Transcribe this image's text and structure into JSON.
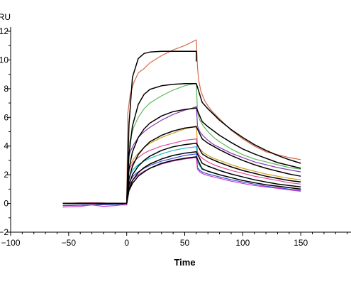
{
  "chart_data": {
    "type": "line",
    "title": "",
    "xlabel": "Time",
    "ylabel": "RU",
    "xlim": [
      -100,
      195
    ],
    "ylim": [
      -2,
      12.5
    ],
    "xticks": [
      -100,
      -50,
      0,
      50,
      100,
      150
    ],
    "yticks": [
      -2,
      0,
      2,
      4,
      6,
      8,
      10,
      12
    ],
    "grid": false,
    "legend": "none",
    "association_end": 60,
    "series": [
      {
        "color": "#d5694a",
        "kind": "data",
        "x": [
          -55,
          -40,
          -20,
          -5,
          0,
          1,
          3,
          6,
          10,
          15,
          20,
          30,
          40,
          50,
          55,
          60,
          61,
          62,
          64,
          67,
          70,
          75,
          80,
          90,
          100,
          110,
          120,
          130,
          140,
          150
        ],
        "y": [
          0,
          0.05,
          -0.05,
          0,
          0,
          6.3,
          7.6,
          8.4,
          9.1,
          9.4,
          9.8,
          10.3,
          10.7,
          11.0,
          11.2,
          11.4,
          9.5,
          8.6,
          7.8,
          7.2,
          6.8,
          6.3,
          5.9,
          5.1,
          4.5,
          4.0,
          3.6,
          3.4,
          3.2,
          3.05
        ]
      },
      {
        "color": "#5cb85c",
        "kind": "data",
        "x": [
          -55,
          -30,
          -5,
          0,
          1,
          3,
          6,
          10,
          15,
          20,
          30,
          40,
          50,
          55,
          60,
          61,
          63,
          66,
          70,
          75,
          80,
          90,
          100,
          110,
          120,
          130,
          140,
          150
        ],
        "y": [
          0,
          0.05,
          0,
          0,
          3.5,
          4.5,
          5.3,
          6.0,
          6.6,
          7.0,
          7.5,
          7.9,
          8.2,
          8.3,
          8.35,
          6.3,
          5.8,
          5.4,
          5.0,
          4.6,
          4.3,
          3.8,
          3.4,
          3.1,
          2.9,
          2.7,
          2.5,
          2.4
        ]
      },
      {
        "color": "#8a3bb0",
        "kind": "data",
        "x": [
          -55,
          -30,
          -5,
          0,
          1,
          3,
          6,
          10,
          15,
          20,
          30,
          40,
          50,
          55,
          60,
          61,
          63,
          66,
          70,
          75,
          80,
          90,
          100,
          110,
          120,
          130,
          140,
          150
        ],
        "y": [
          0,
          0.05,
          0,
          0,
          3.0,
          3.6,
          4.1,
          4.6,
          5.0,
          5.3,
          5.8,
          6.2,
          6.5,
          6.6,
          6.75,
          5.4,
          5.0,
          4.7,
          4.4,
          4.1,
          3.9,
          3.5,
          3.2,
          2.9,
          2.7,
          2.5,
          2.35,
          2.2
        ]
      },
      {
        "color": "#c9a21a",
        "kind": "data",
        "x": [
          -55,
          -30,
          -5,
          0,
          1,
          3,
          6,
          10,
          15,
          20,
          30,
          40,
          50,
          55,
          60,
          61,
          63,
          66,
          70,
          75,
          80,
          90,
          100,
          110,
          120,
          130,
          140,
          150
        ],
        "y": [
          0,
          0.05,
          0,
          0,
          2.2,
          2.7,
          3.1,
          3.5,
          3.9,
          4.2,
          4.6,
          4.9,
          5.2,
          5.3,
          5.4,
          4.1,
          3.8,
          3.55,
          3.35,
          3.15,
          3.0,
          2.7,
          2.45,
          2.25,
          2.05,
          1.9,
          1.75,
          1.65
        ]
      },
      {
        "color": "#e04a9a",
        "kind": "data",
        "x": [
          -55,
          -30,
          -5,
          0,
          1,
          3,
          6,
          10,
          15,
          20,
          30,
          40,
          50,
          55,
          60,
          61,
          63,
          66,
          70,
          75,
          80,
          90,
          100,
          110,
          120,
          130,
          140,
          150
        ],
        "y": [
          0,
          0.05,
          0,
          0,
          2.0,
          2.5,
          2.9,
          3.2,
          3.5,
          3.7,
          4.0,
          4.2,
          4.4,
          4.45,
          4.5,
          3.6,
          3.3,
          3.1,
          2.9,
          2.7,
          2.55,
          2.3,
          2.1,
          1.9,
          1.75,
          1.6,
          1.45,
          1.35
        ]
      },
      {
        "color": "#20b8c8",
        "kind": "data",
        "x": [
          -55,
          -30,
          -5,
          0,
          1,
          3,
          6,
          10,
          15,
          20,
          30,
          40,
          50,
          55,
          60,
          61,
          63,
          66,
          70,
          80,
          90,
          100,
          110,
          120,
          130,
          140,
          150
        ],
        "y": [
          0,
          0,
          0,
          0,
          1.5,
          2.0,
          2.4,
          2.7,
          2.95,
          3.15,
          3.45,
          3.7,
          3.85,
          3.9,
          3.95,
          2.9,
          2.6,
          2.4,
          2.25,
          2.0,
          1.8,
          1.6,
          1.45,
          1.3,
          1.2,
          1.1,
          1.0
        ]
      },
      {
        "color": "#3a4bd0",
        "kind": "data",
        "x": [
          -55,
          -30,
          -5,
          0,
          1,
          3,
          6,
          10,
          15,
          20,
          30,
          40,
          50,
          55,
          60,
          61,
          63,
          66,
          70,
          80,
          90,
          100,
          110,
          120,
          130,
          140,
          150
        ],
        "y": [
          -0.15,
          -0.1,
          -0.05,
          0,
          1.2,
          1.6,
          1.95,
          2.2,
          2.45,
          2.65,
          2.95,
          3.15,
          3.35,
          3.4,
          3.45,
          2.5,
          2.3,
          2.15,
          2.05,
          1.85,
          1.65,
          1.5,
          1.35,
          1.2,
          1.1,
          1.0,
          0.9
        ]
      },
      {
        "color": "#c83ac8",
        "kind": "data",
        "x": [
          -55,
          -40,
          -30,
          -20,
          -10,
          -5,
          0,
          1,
          3,
          6,
          10,
          15,
          20,
          30,
          40,
          50,
          55,
          60,
          61,
          63,
          66,
          70,
          80,
          90,
          100,
          110,
          120,
          130,
          140,
          150
        ],
        "y": [
          -0.25,
          -0.2,
          -0.1,
          -0.2,
          -0.15,
          -0.1,
          -0.1,
          1.0,
          1.4,
          1.7,
          2.0,
          2.25,
          2.45,
          2.75,
          2.95,
          3.1,
          3.15,
          3.2,
          2.4,
          2.2,
          2.05,
          1.95,
          1.75,
          1.55,
          1.4,
          1.25,
          1.15,
          1.05,
          0.95,
          0.85
        ]
      },
      {
        "color": "#000000",
        "kind": "fit",
        "x": [
          -55,
          0,
          2,
          5,
          10,
          15,
          20,
          30,
          40,
          50,
          60,
          60.1,
          70,
          80,
          90,
          100,
          110,
          120,
          130,
          140,
          150
        ],
        "y": [
          0,
          0,
          5.5,
          8.8,
          10.1,
          10.45,
          10.55,
          10.6,
          10.6,
          10.6,
          10.6,
          0,
          0,
          0,
          0,
          0,
          0,
          0,
          0,
          0,
          0
        ],
        "segment": "association"
      },
      {
        "color": "#000000",
        "kind": "fit",
        "x": [
          -55,
          0,
          2,
          5,
          10,
          15,
          20,
          30,
          40,
          50,
          60,
          65,
          70,
          80,
          90,
          100,
          110,
          120,
          130,
          140,
          150
        ],
        "y": [
          0,
          0,
          3.4,
          5.4,
          6.9,
          7.6,
          7.95,
          8.2,
          8.3,
          8.35,
          8.35,
          7.05,
          6.6,
          5.8,
          5.15,
          4.6,
          4.1,
          3.7,
          3.35,
          3.05,
          2.8
        ]
      },
      {
        "color": "#000000",
        "kind": "fit",
        "x": [
          -55,
          0,
          2,
          5,
          10,
          15,
          20,
          30,
          40,
          50,
          60,
          65,
          70,
          80,
          90,
          100,
          110,
          120,
          130,
          140,
          150
        ],
        "y": [
          0,
          0,
          2.4,
          3.6,
          4.6,
          5.2,
          5.6,
          6.1,
          6.4,
          6.55,
          6.65,
          5.7,
          5.35,
          4.75,
          4.25,
          3.8,
          3.45,
          3.15,
          2.85,
          2.65,
          2.45
        ]
      },
      {
        "color": "#000000",
        "kind": "fit",
        "x": [
          -55,
          0,
          2,
          5,
          10,
          15,
          20,
          30,
          40,
          50,
          60,
          65,
          70,
          80,
          90,
          100,
          110,
          120,
          130,
          140,
          150
        ],
        "y": [
          0,
          0,
          1.7,
          2.6,
          3.4,
          3.9,
          4.3,
          4.75,
          5.05,
          5.25,
          5.35,
          4.5,
          4.2,
          3.75,
          3.35,
          3.0,
          2.7,
          2.45,
          2.25,
          2.05,
          1.9
        ]
      },
      {
        "color": "#000000",
        "kind": "fit",
        "x": [
          -55,
          0,
          2,
          5,
          10,
          15,
          20,
          30,
          40,
          50,
          60,
          65,
          70,
          80,
          90,
          100,
          110,
          120,
          130,
          140,
          150
        ],
        "y": [
          0,
          0,
          1.3,
          2.0,
          2.6,
          3.0,
          3.3,
          3.7,
          3.95,
          4.1,
          4.2,
          3.45,
          3.2,
          2.85,
          2.55,
          2.3,
          2.1,
          1.9,
          1.75,
          1.6,
          1.5
        ]
      },
      {
        "color": "#000000",
        "kind": "fit",
        "x": [
          -55,
          0,
          2,
          5,
          10,
          15,
          20,
          30,
          40,
          50,
          60,
          65,
          70,
          80,
          90,
          100,
          110,
          120,
          130,
          140,
          150
        ],
        "y": [
          0,
          0,
          1.0,
          1.6,
          2.15,
          2.5,
          2.75,
          3.1,
          3.35,
          3.5,
          3.6,
          2.8,
          2.6,
          2.3,
          2.05,
          1.85,
          1.65,
          1.5,
          1.35,
          1.25,
          1.15
        ]
      },
      {
        "color": "#000000",
        "kind": "fit",
        "x": [
          -55,
          0,
          2,
          5,
          10,
          15,
          20,
          30,
          40,
          50,
          60,
          65,
          70,
          80,
          90,
          100,
          110,
          120,
          130,
          140,
          150
        ],
        "y": [
          0,
          0,
          0.9,
          1.4,
          1.9,
          2.2,
          2.45,
          2.8,
          3.0,
          3.15,
          3.25,
          2.4,
          2.25,
          2.0,
          1.8,
          1.6,
          1.45,
          1.3,
          1.2,
          1.1,
          1.0
        ]
      }
    ]
  }
}
